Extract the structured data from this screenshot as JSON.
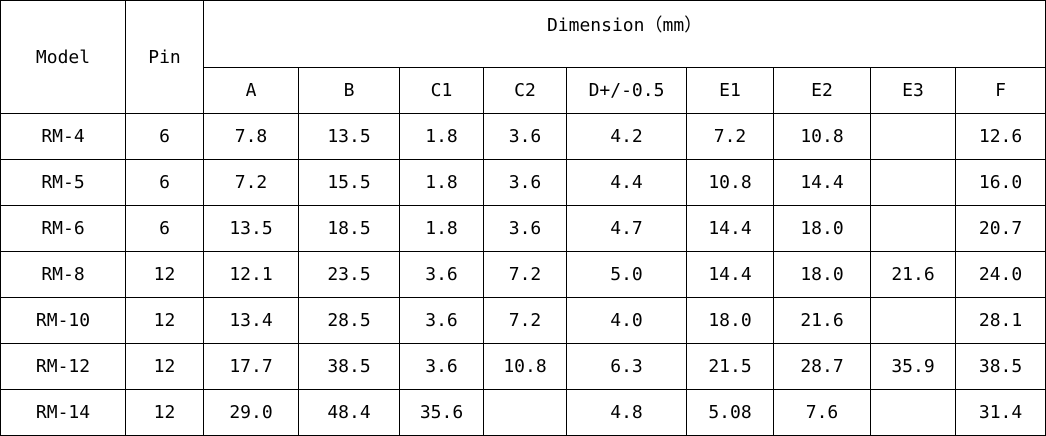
{
  "table": {
    "header": {
      "model": "Model",
      "pin": "Pin",
      "dimension": "Dimension（mm）",
      "columns": [
        "A",
        "B",
        "C1",
        "C2",
        "D+/-0.5",
        "E1",
        "E2",
        "E3",
        "F"
      ]
    },
    "rows": [
      [
        "RM-4",
        "6",
        "7.8",
        "13.5",
        "1.8",
        "3.6",
        "4.2",
        "7.2",
        "10.8",
        null,
        "12.6"
      ],
      [
        "RM-5",
        "6",
        "7.2",
        "15.5",
        "1.8",
        "3.6",
        "4.4",
        "10.8",
        "14.4",
        null,
        "16.0"
      ],
      [
        "RM-6",
        "6",
        "13.5",
        "18.5",
        "1.8",
        "3.6",
        "4.7",
        "14.4",
        "18.0",
        null,
        "20.7"
      ],
      [
        "RM-8",
        "12",
        "12.1",
        "23.5",
        "3.6",
        "7.2",
        "5.0",
        "14.4",
        "18.0",
        "21.6",
        "24.0"
      ],
      [
        "RM-10",
        "12",
        "13.4",
        "28.5",
        "3.6",
        "7.2",
        "4.0",
        "18.0",
        "21.6",
        null,
        "28.1"
      ],
      [
        "RM-12",
        "12",
        "17.7",
        "38.5",
        "3.6",
        "10.8",
        "6.3",
        "21.5",
        "28.7",
        "35.9",
        "38.5"
      ],
      [
        "RM-14",
        "12",
        "29.0",
        "48.4",
        "35.6",
        null,
        "4.8",
        "5.08",
        "7.6",
        null,
        "31.4"
      ]
    ]
  }
}
